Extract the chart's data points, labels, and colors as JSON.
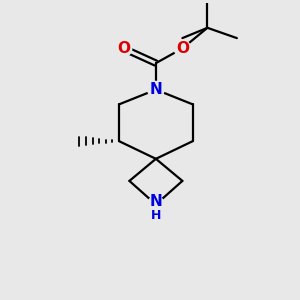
{
  "background_color": "#e8e8e8",
  "line_color": "#000000",
  "nitrogen_color": "#0000dd",
  "oxygen_color": "#dd0000",
  "bond_width": 1.6,
  "fig_size": [
    3.0,
    3.0
  ],
  "dpi": 100,
  "xlim": [
    0,
    10
  ],
  "ylim": [
    0,
    10
  ],
  "spiro_x": 5.2,
  "spiro_y": 4.7,
  "n7_x": 5.2,
  "n7_y": 7.05,
  "c8_x": 6.45,
  "c8_y": 6.55,
  "c9_x": 6.45,
  "c9_y": 5.3,
  "c5_x": 3.95,
  "c5_y": 5.3,
  "c6_x": 3.95,
  "c6_y": 6.55,
  "n2_x": 5.2,
  "n2_y": 3.15,
  "c1_x": 4.3,
  "c1_y": 3.95,
  "c3_x": 6.1,
  "c3_y": 3.95,
  "carb_c_x": 5.2,
  "carb_c_y": 7.95,
  "o_double_x": 4.1,
  "o_double_y": 8.45,
  "o_single_x": 6.1,
  "o_single_y": 8.45,
  "tbu_c_x": 6.95,
  "tbu_c_y": 9.15,
  "me_top_x": 6.95,
  "me_top_y": 10.1,
  "me_right_x": 7.95,
  "me_right_y": 8.8,
  "me_left_x": 6.1,
  "me_left_y": 8.8,
  "methyl_x": 2.6,
  "methyl_y": 5.3
}
